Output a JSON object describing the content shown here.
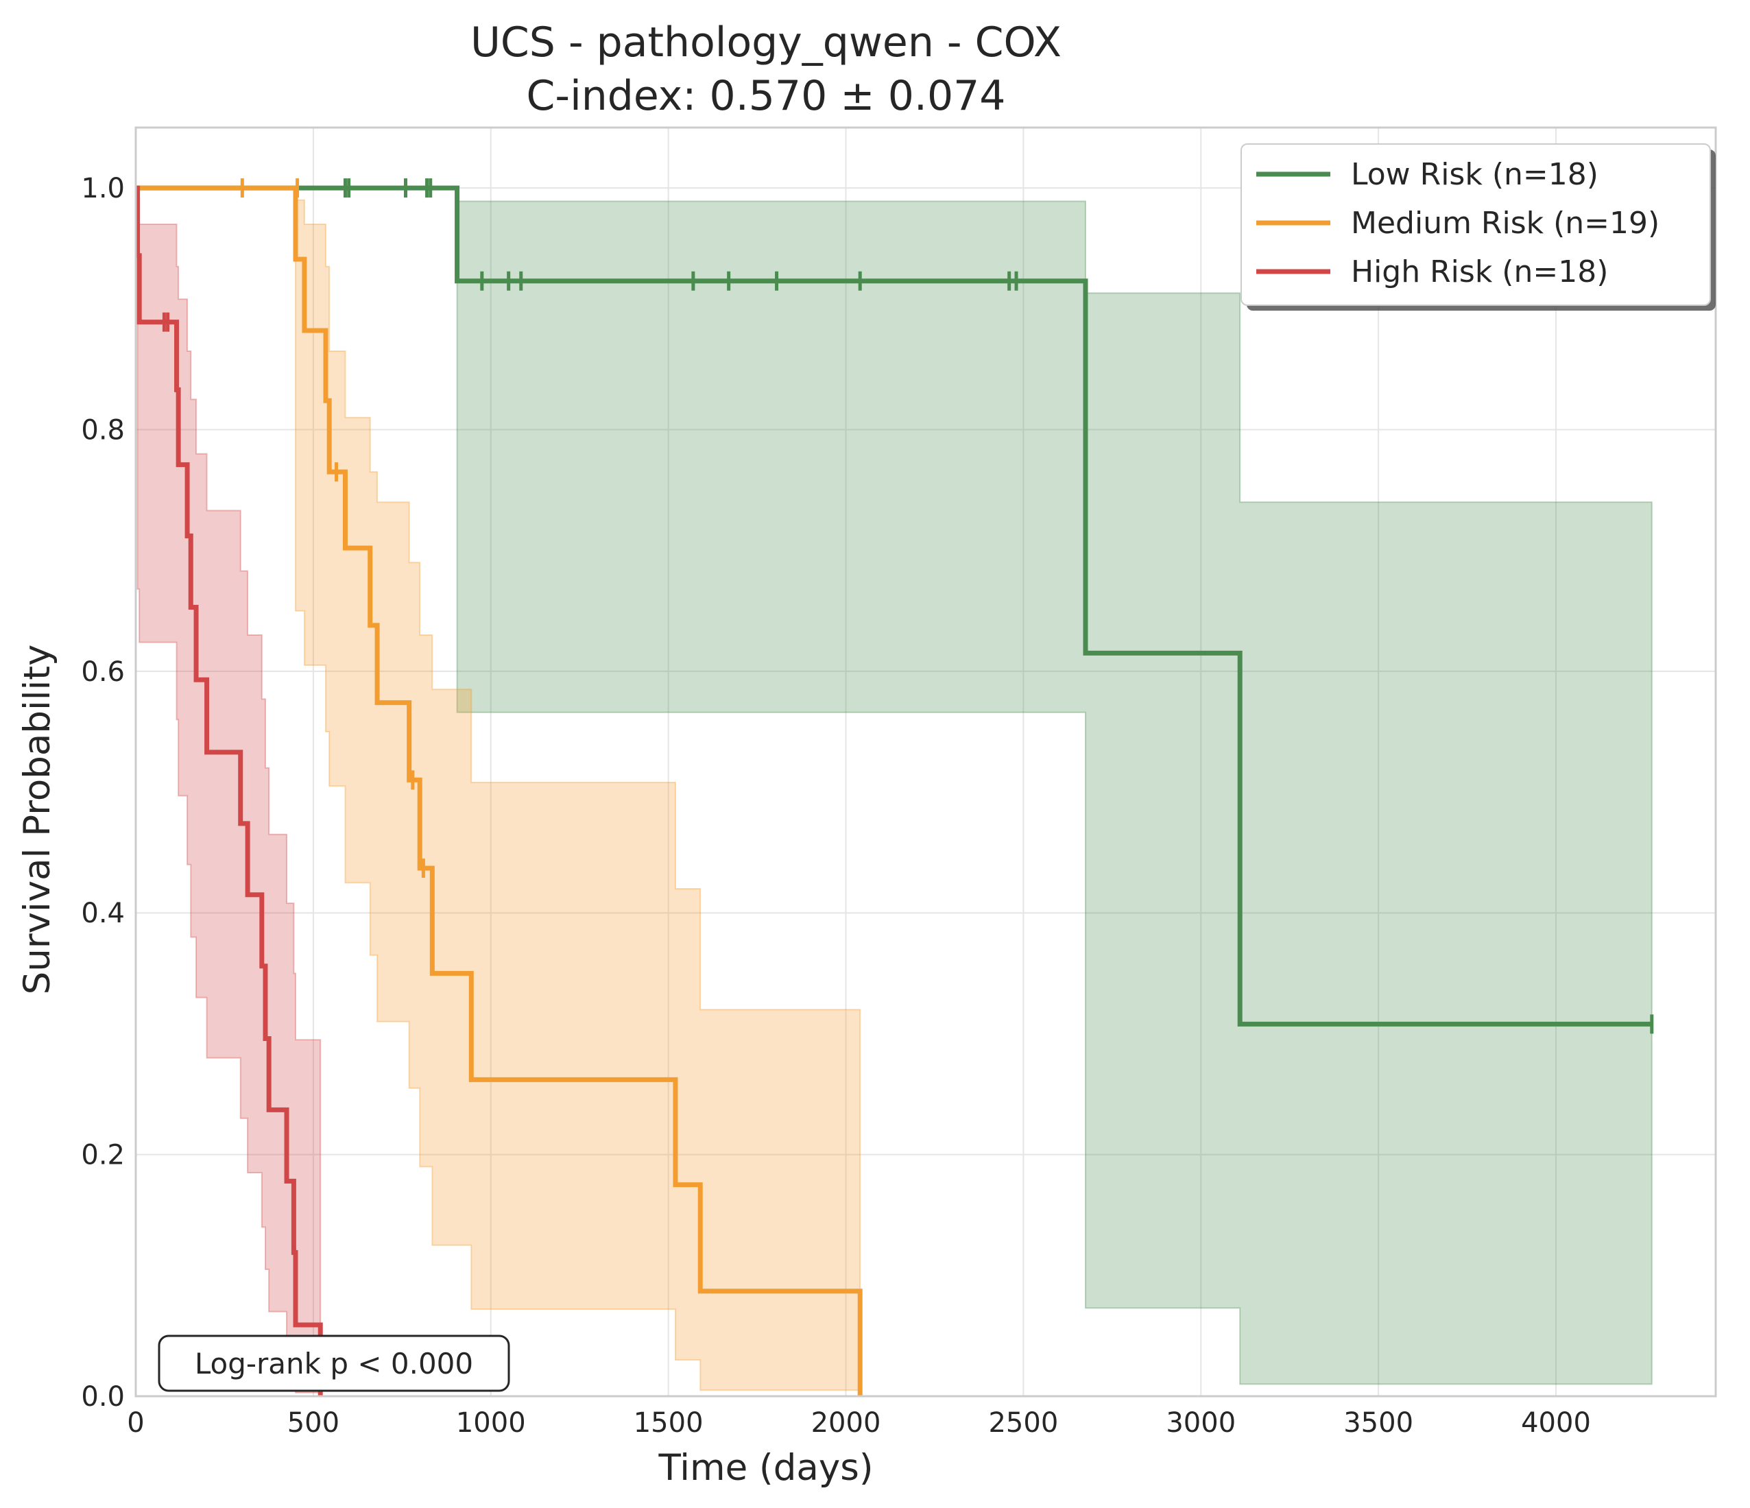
{
  "chart_data": {
    "type": "line",
    "subtype": "kaplan-meier",
    "title": "UCS - pathology_qwen - COX",
    "subtitle": "C-index: 0.570 ± 0.074",
    "xlabel": "Time (days)",
    "ylabel": "Survival Probability",
    "xlim": [
      0,
      4450
    ],
    "ylim": [
      0,
      1.05
    ],
    "x_ticks": [
      0,
      500,
      1000,
      1500,
      2000,
      2500,
      3000,
      3500,
      4000
    ],
    "y_ticks": [
      0.0,
      0.2,
      0.4,
      0.6,
      0.8,
      1.0
    ],
    "x_tick_labels": [
      "0",
      "500",
      "1000",
      "1500",
      "2000",
      "2500",
      "3000",
      "3500",
      "4000"
    ],
    "y_tick_labels": [
      "0.0",
      "0.2",
      "0.4",
      "0.6",
      "0.8",
      "1.0"
    ],
    "grid": true,
    "legend_position": "top-right",
    "annotation": "Log-rank p < 0.000",
    "series": [
      {
        "name": "Low Risk (n=18)",
        "color": "#4a8c4f",
        "steps": [
          [
            0,
            1.0
          ],
          [
            905,
            0.923
          ],
          [
            2675,
            0.615
          ],
          [
            3110,
            0.308
          ],
          [
            4270,
            0.308
          ]
        ],
        "ci": [
          [
            0,
            1.0,
            1.0
          ],
          [
            905,
            0.566,
            0.989
          ],
          [
            2675,
            0.073,
            0.913
          ],
          [
            3110,
            0.01,
            0.74
          ],
          [
            4270,
            0.01,
            0.74
          ]
        ],
        "censors": [
          [
            590,
            1.0
          ],
          [
            600,
            1.0
          ],
          [
            760,
            1.0
          ],
          [
            820,
            1.0
          ],
          [
            830,
            1.0
          ],
          [
            975,
            0.923
          ],
          [
            1050,
            0.923
          ],
          [
            1085,
            0.923
          ],
          [
            1570,
            0.923
          ],
          [
            1670,
            0.923
          ],
          [
            1805,
            0.923
          ],
          [
            2040,
            0.923
          ],
          [
            2460,
            0.923
          ],
          [
            2480,
            0.923
          ],
          [
            4270,
            0.308
          ]
        ]
      },
      {
        "name": "Medium Risk (n=19)",
        "color": "#f39c2f",
        "steps": [
          [
            0,
            1.0
          ],
          [
            450,
            0.941
          ],
          [
            475,
            0.882
          ],
          [
            535,
            0.824
          ],
          [
            545,
            0.765
          ],
          [
            590,
            0.702
          ],
          [
            660,
            0.638
          ],
          [
            680,
            0.574
          ],
          [
            770,
            0.51
          ],
          [
            800,
            0.437
          ],
          [
            835,
            0.35
          ],
          [
            945,
            0.262
          ],
          [
            1520,
            0.175
          ],
          [
            1590,
            0.087
          ],
          [
            2040,
            0.0
          ]
        ],
        "ci": [
          [
            0,
            1.0,
            1.0
          ],
          [
            450,
            0.65,
            0.99
          ],
          [
            475,
            0.605,
            0.97
          ],
          [
            535,
            0.55,
            0.935
          ],
          [
            545,
            0.505,
            0.865
          ],
          [
            590,
            0.425,
            0.81
          ],
          [
            660,
            0.365,
            0.765
          ],
          [
            680,
            0.31,
            0.74
          ],
          [
            770,
            0.255,
            0.69
          ],
          [
            800,
            0.19,
            0.63
          ],
          [
            835,
            0.125,
            0.585
          ],
          [
            945,
            0.072,
            0.508
          ],
          [
            1520,
            0.03,
            0.42
          ],
          [
            1590,
            0.005,
            0.32
          ],
          [
            2040,
            0.0,
            0.32
          ]
        ],
        "censors": [
          [
            300,
            1.0
          ],
          [
            455,
            1.0
          ],
          [
            565,
            0.765
          ],
          [
            780,
            0.51
          ],
          [
            810,
            0.437
          ]
        ]
      },
      {
        "name": "High Risk (n=18)",
        "color": "#d14747",
        "steps": [
          [
            0,
            1.0
          ],
          [
            5,
            0.944
          ],
          [
            10,
            0.889
          ],
          [
            115,
            0.833
          ],
          [
            120,
            0.771
          ],
          [
            145,
            0.712
          ],
          [
            155,
            0.653
          ],
          [
            170,
            0.593
          ],
          [
            200,
            0.533
          ],
          [
            295,
            0.474
          ],
          [
            315,
            0.415
          ],
          [
            355,
            0.356
          ],
          [
            365,
            0.296
          ],
          [
            375,
            0.237
          ],
          [
            425,
            0.178
          ],
          [
            445,
            0.119
          ],
          [
            450,
            0.059
          ],
          [
            520,
            0.0
          ]
        ],
        "ci": [
          [
            0,
            1.0,
            1.0
          ],
          [
            5,
            0.668,
            0.992
          ],
          [
            10,
            0.624,
            0.97
          ],
          [
            115,
            0.56,
            0.935
          ],
          [
            120,
            0.497,
            0.908
          ],
          [
            145,
            0.44,
            0.865
          ],
          [
            155,
            0.38,
            0.825
          ],
          [
            170,
            0.33,
            0.78
          ],
          [
            200,
            0.28,
            0.733
          ],
          [
            295,
            0.23,
            0.683
          ],
          [
            315,
            0.185,
            0.63
          ],
          [
            355,
            0.14,
            0.577
          ],
          [
            365,
            0.105,
            0.52
          ],
          [
            375,
            0.07,
            0.465
          ],
          [
            425,
            0.04,
            0.408
          ],
          [
            445,
            0.02,
            0.35
          ],
          [
            450,
            0.003,
            0.295
          ],
          [
            520,
            0.0,
            0.237
          ]
        ],
        "censors": [
          [
            80,
            0.889
          ],
          [
            90,
            0.889
          ]
        ]
      }
    ]
  }
}
